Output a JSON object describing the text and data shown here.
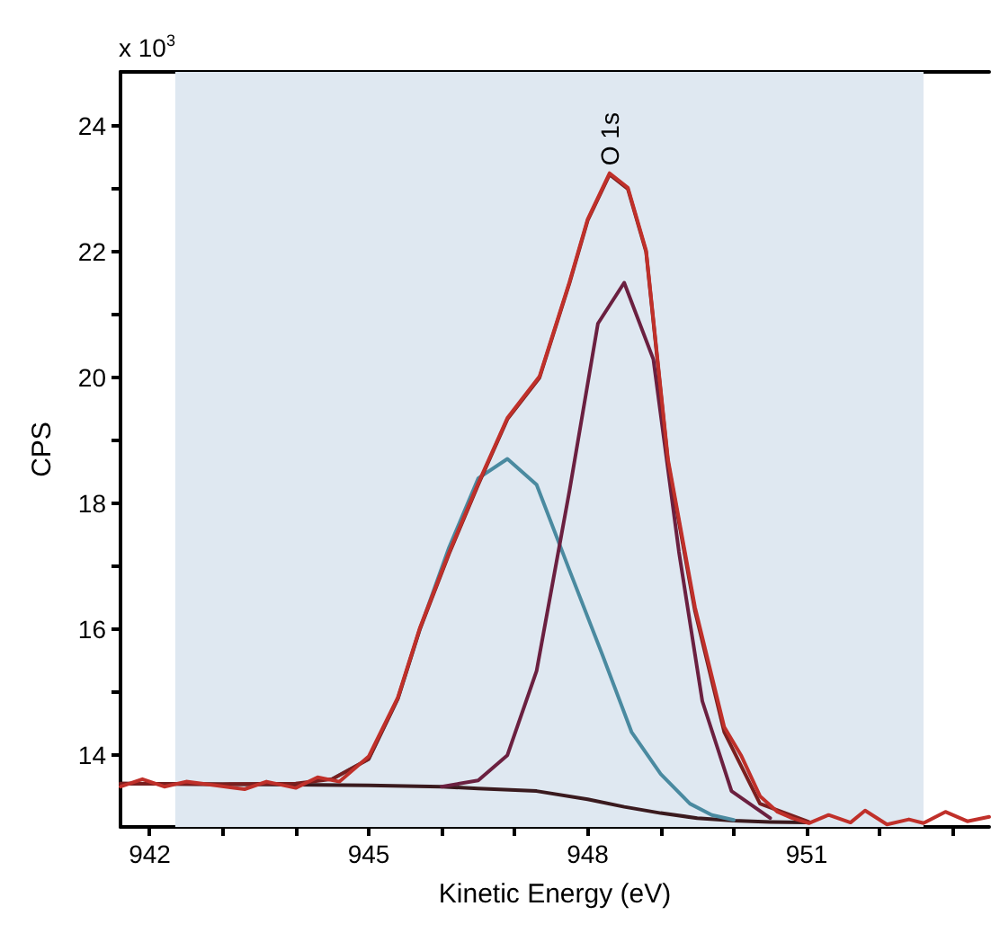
{
  "chart_data": {
    "type": "line",
    "xlabel": "Kinetic Energy (eV)",
    "ylabel": "CPS",
    "annotations": [
      "x 10$^{3}$",
      {
        "text": "O 1s",
        "x": 948.3,
        "y": 23.2
      }
    ],
    "xlim": [
      941.6,
      953.5
    ],
    "ylim": [
      12.86,
      24.86
    ],
    "xticks": [
      942,
      {
        "value": 943,
        "label": null
      },
      {
        "value": 944,
        "label": null
      },
      945,
      {
        "value": 946,
        "label": null
      },
      {
        "value": 947,
        "label": null
      },
      948,
      {
        "value": 949,
        "label": null
      },
      {
        "value": 950,
        "label": null
      },
      951,
      {
        "value": 952,
        "label": null
      },
      {
        "value": 953,
        "label": null
      }
    ],
    "yticks": [
      14,
      {
        "value": 15,
        "label": null
      },
      16,
      {
        "value": 17,
        "label": null
      },
      18,
      {
        "value": 19,
        "label": null
      },
      20,
      {
        "value": 21,
        "label": null
      },
      22,
      {
        "value": 23,
        "label": null
      },
      24
    ],
    "bands": [
      {
        "axis": "x",
        "from": 942.35,
        "to": 952.6,
        "color": "#dfe8f1"
      }
    ],
    "grid": false,
    "legend": false,
    "marker": "none",
    "series": [
      {
        "color": "#3a1a1e",
        "x": [
          941.6,
          943,
          944,
          945,
          946,
          946.5,
          947.3,
          948,
          948.5,
          949,
          949.5,
          950,
          950.5,
          951
        ],
        "values": [
          13.55,
          13.54,
          13.53,
          13.52,
          13.5,
          13.47,
          13.43,
          13.3,
          13.18,
          13.08,
          13.0,
          12.96,
          12.94,
          12.93
        ]
      },
      {
        "color": "#4a8aa0",
        "x": [
          944.5,
          945,
          945.4,
          945.7,
          946.1,
          946.5,
          946.9,
          947.3,
          947.75,
          948.2,
          948.6,
          949.0,
          949.4,
          949.7,
          950.0
        ],
        "values": [
          13.62,
          13.94,
          14.9,
          16.0,
          17.3,
          18.4,
          18.71,
          18.3,
          16.94,
          15.6,
          14.37,
          13.7,
          13.23,
          13.05,
          12.97
        ]
      },
      {
        "color": "#6b2040",
        "x": [
          946,
          946.5,
          946.9,
          947.3,
          947.75,
          948.14,
          948.5,
          948.9,
          949.25,
          949.57,
          949.97,
          950.5
        ],
        "values": [
          13.5,
          13.6,
          14.0,
          15.34,
          18.2,
          20.86,
          21.51,
          20.29,
          17.23,
          14.86,
          13.43,
          13.0
        ]
      },
      {
        "color": "#7a1f1f",
        "x": [
          941.6,
          943,
          944,
          944.5,
          945,
          945.4,
          945.7,
          946.1,
          946.5,
          946.9,
          947.34,
          947.75,
          948.0,
          948.3,
          948.55,
          948.8,
          949.1,
          949.47,
          949.87,
          950.36,
          951.03
        ],
        "values": [
          13.55,
          13.54,
          13.55,
          13.62,
          13.94,
          14.9,
          16.0,
          17.2,
          18.3,
          19.34,
          20.0,
          21.5,
          22.5,
          23.23,
          23.0,
          22.0,
          18.66,
          16.29,
          14.37,
          13.23,
          12.94
        ]
      },
      {
        "color": "#c0302a",
        "x": [
          941.6,
          941.9,
          942.2,
          942.5,
          942.9,
          943.3,
          943.6,
          944.0,
          944.3,
          944.6,
          945.0,
          945.4,
          945.7,
          946.1,
          946.5,
          946.9,
          947.34,
          947.75,
          948.0,
          948.3,
          948.55,
          948.8,
          949.1,
          949.47,
          949.87,
          950.1,
          950.36,
          950.6,
          950.8,
          951.03,
          951.3,
          951.6,
          951.8,
          952.1,
          952.4,
          952.6,
          952.9,
          953.2,
          953.5
        ],
        "values": [
          13.5,
          13.62,
          13.5,
          13.58,
          13.52,
          13.46,
          13.58,
          13.48,
          13.65,
          13.58,
          13.98,
          14.92,
          16.02,
          17.22,
          18.32,
          19.36,
          20.02,
          21.52,
          22.52,
          23.25,
          23.02,
          22.02,
          18.7,
          16.35,
          14.45,
          14.0,
          13.35,
          13.1,
          13.0,
          12.92,
          13.05,
          12.93,
          13.12,
          12.9,
          12.98,
          12.92,
          13.1,
          12.95,
          13.02
        ]
      }
    ]
  }
}
